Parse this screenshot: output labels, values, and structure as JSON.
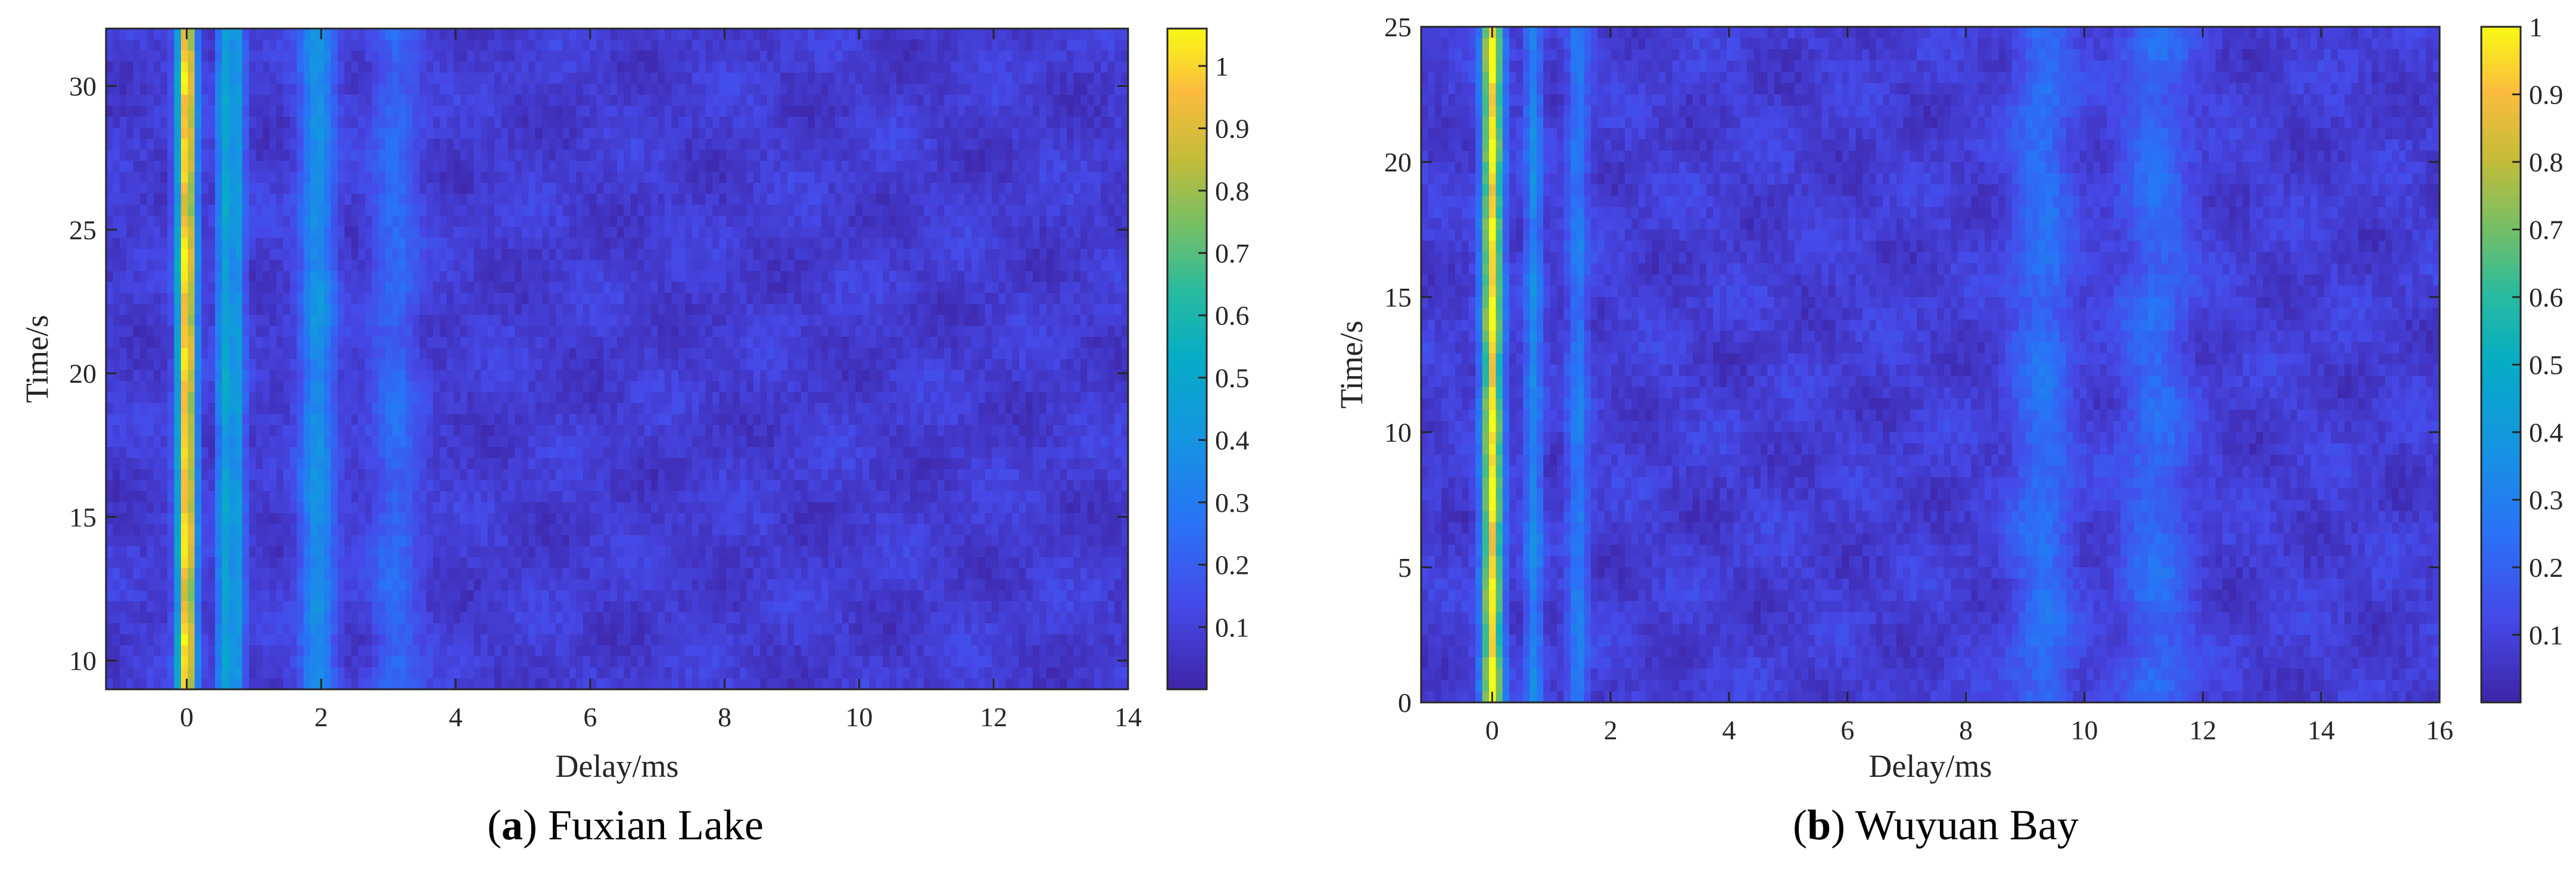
{
  "chart_data": [
    {
      "type": "heatmap",
      "caption_letter": "a",
      "caption_text": "Fuxian Lake",
      "xlabel": "Delay/ms",
      "ylabel": "Time/s",
      "xlim": [
        -1.2,
        14
      ],
      "ylim": [
        9,
        32
      ],
      "x_ticks": [
        0,
        2,
        4,
        6,
        8,
        10,
        12,
        14
      ],
      "y_ticks": [
        10,
        15,
        20,
        25,
        30
      ],
      "colorbar": {
        "range": [
          0,
          1.06
        ],
        "ticks": [
          0.1,
          0.2,
          0.3,
          0.4,
          0.5,
          0.6,
          0.7,
          0.8,
          0.9,
          1
        ],
        "colormap": "parula"
      },
      "features": [
        {
          "delay": 0.0,
          "peak": 0.95,
          "width": 0.1
        },
        {
          "delay": 0.55,
          "peak": 0.4,
          "width": 0.07
        },
        {
          "delay": 0.75,
          "peak": 0.35,
          "width": 0.08
        },
        {
          "delay": 1.95,
          "peak": 0.3,
          "width": 0.18
        },
        {
          "delay": 3.1,
          "peak": 0.15,
          "width": 0.25
        }
      ],
      "background_level": 0.08
    },
    {
      "type": "heatmap",
      "caption_letter": "b",
      "caption_text": "Wuyuan Bay",
      "xlabel": "Delay/ms",
      "ylabel": "Time/s",
      "xlim": [
        -1.2,
        16
      ],
      "ylim": [
        0,
        25
      ],
      "x_ticks": [
        0,
        2,
        4,
        6,
        8,
        10,
        12,
        14,
        16
      ],
      "y_ticks": [
        0,
        5,
        10,
        15,
        20,
        25
      ],
      "colorbar": {
        "range": [
          0,
          1.0
        ],
        "ticks": [
          0.1,
          0.2,
          0.3,
          0.4,
          0.5,
          0.6,
          0.7,
          0.8,
          0.9,
          1
        ],
        "colormap": "parula"
      },
      "features": [
        {
          "delay": 0.0,
          "peak": 0.88,
          "width": 0.12
        },
        {
          "delay": 0.7,
          "peak": 0.25,
          "width": 0.1
        },
        {
          "delay": 1.45,
          "peak": 0.2,
          "width": 0.12
        },
        {
          "delay": 9.3,
          "peak": 0.16,
          "width": 0.35
        },
        {
          "delay": 11.2,
          "peak": 0.14,
          "width": 0.4
        }
      ],
      "background_level": 0.08
    }
  ]
}
